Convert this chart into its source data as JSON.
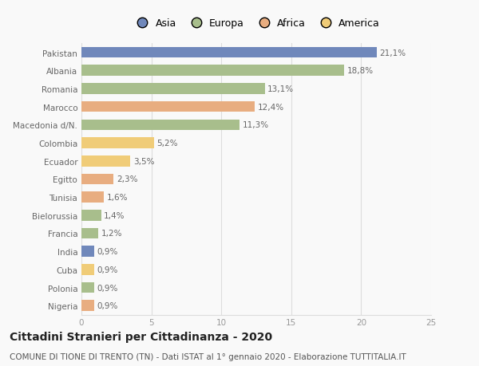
{
  "categories": [
    "Pakistan",
    "Albania",
    "Romania",
    "Marocco",
    "Macedonia d/N.",
    "Colombia",
    "Ecuador",
    "Egitto",
    "Tunisia",
    "Bielorussia",
    "Francia",
    "India",
    "Cuba",
    "Polonia",
    "Nigeria"
  ],
  "values": [
    21.1,
    18.8,
    13.1,
    12.4,
    11.3,
    5.2,
    3.5,
    2.3,
    1.6,
    1.4,
    1.2,
    0.9,
    0.9,
    0.9,
    0.9
  ],
  "labels": [
    "21,1%",
    "18,8%",
    "13,1%",
    "12,4%",
    "11,3%",
    "5,2%",
    "3,5%",
    "2,3%",
    "1,6%",
    "1,4%",
    "1,2%",
    "0,9%",
    "0,9%",
    "0,9%",
    "0,9%"
  ],
  "colors": [
    "#7088bb",
    "#a8be8c",
    "#a8be8c",
    "#e8ad80",
    "#a8be8c",
    "#f0cc78",
    "#f0cc78",
    "#e8ad80",
    "#e8ad80",
    "#a8be8c",
    "#a8be8c",
    "#7088bb",
    "#f0cc78",
    "#a8be8c",
    "#e8ad80"
  ],
  "legend": {
    "labels": [
      "Asia",
      "Europa",
      "Africa",
      "America"
    ],
    "colors": [
      "#7088bb",
      "#a8be8c",
      "#e8ad80",
      "#f0cc78"
    ]
  },
  "xlim": [
    0,
    25
  ],
  "xticks": [
    0,
    5,
    10,
    15,
    20,
    25
  ],
  "title": "Cittadini Stranieri per Cittadinanza - 2020",
  "subtitle": "COMUNE DI TIONE DI TRENTO (TN) - Dati ISTAT al 1° gennaio 2020 - Elaborazione TUTTITALIA.IT",
  "background_color": "#f9f9f9",
  "grid_color": "#dddddd",
  "bar_height": 0.6,
  "label_fontsize": 7.5,
  "tick_fontsize": 7.5,
  "title_fontsize": 10,
  "subtitle_fontsize": 7.5
}
